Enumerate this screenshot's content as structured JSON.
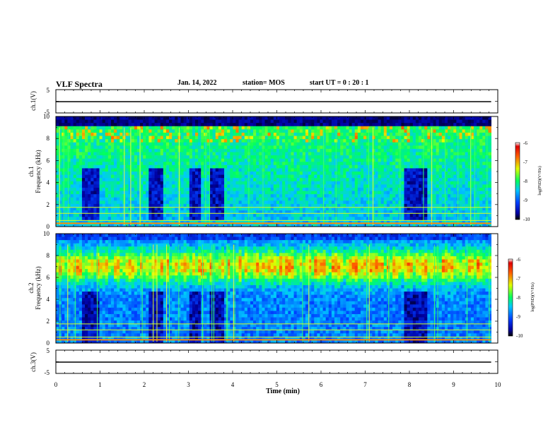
{
  "header": {
    "title": "VLF Spectra",
    "date": "Jan. 14, 2022",
    "station": "station= MOS",
    "start_ut": "start UT =   0 : 20 : 1"
  },
  "chart_data": [
    {
      "type": "line",
      "name": "ch1-waveform",
      "ylabel": "ch.1(V)",
      "ylim": [
        -5,
        5
      ],
      "yticks": [
        "5",
        "-5"
      ],
      "xlim": [
        0,
        10
      ],
      "x": [
        0,
        9.85
      ],
      "y": [
        0,
        0
      ]
    },
    {
      "type": "heatmap",
      "name": "ch1-spectrogram",
      "ylabel_line1": "ch.1",
      "ylabel_line2": "Frequency (kHz)",
      "xlim": [
        0,
        10
      ],
      "ylim": [
        0,
        10
      ],
      "yticks": [
        0,
        2,
        4,
        6,
        8,
        10
      ],
      "data_xmax": 9.85,
      "quiet_intervals": [
        [
          0.6,
          1.0
        ],
        [
          2.1,
          2.4
        ],
        [
          3.0,
          3.3
        ],
        [
          3.5,
          3.8
        ],
        [
          7.9,
          8.4
        ]
      ],
      "band_top_khz": 9.2,
      "colorbar": {
        "label": "log(PSD)(V²/Hz)",
        "range": [
          -10,
          -6
        ],
        "ticks": [
          "-6",
          "-7",
          "-8",
          "-9",
          "-10"
        ]
      }
    },
    {
      "type": "heatmap",
      "name": "ch2-spectrogram",
      "ylabel_line1": "ch.2",
      "ylabel_line2": "Frequency (kHz)",
      "xlim": [
        0,
        10
      ],
      "ylim": [
        0,
        10
      ],
      "yticks": [
        0,
        2,
        4,
        6,
        8,
        10
      ],
      "data_xmax": 9.85,
      "quiet_intervals": [
        [
          0.6,
          1.0
        ],
        [
          2.1,
          2.4
        ],
        [
          3.0,
          3.3
        ],
        [
          3.5,
          3.8
        ],
        [
          7.9,
          8.4
        ]
      ],
      "hiss_center_khz": 7.0,
      "colorbar": {
        "label": "log(PSD)(V²/Hz)",
        "range": [
          -10,
          -6
        ],
        "ticks": [
          "-6",
          "-7",
          "-8",
          "-9",
          "-10"
        ]
      }
    },
    {
      "type": "line",
      "name": "ch3-waveform",
      "ylabel": "ch.3(V)",
      "ylim": [
        -5,
        5
      ],
      "yticks": [
        "5",
        "-5"
      ],
      "xlim": [
        0,
        10
      ],
      "x": [
        0,
        9.85
      ],
      "y": [
        0,
        0
      ],
      "xlabel": "Time (min)",
      "xticks": [
        0,
        1,
        2,
        3,
        4,
        5,
        6,
        7,
        8,
        9,
        10
      ]
    }
  ]
}
